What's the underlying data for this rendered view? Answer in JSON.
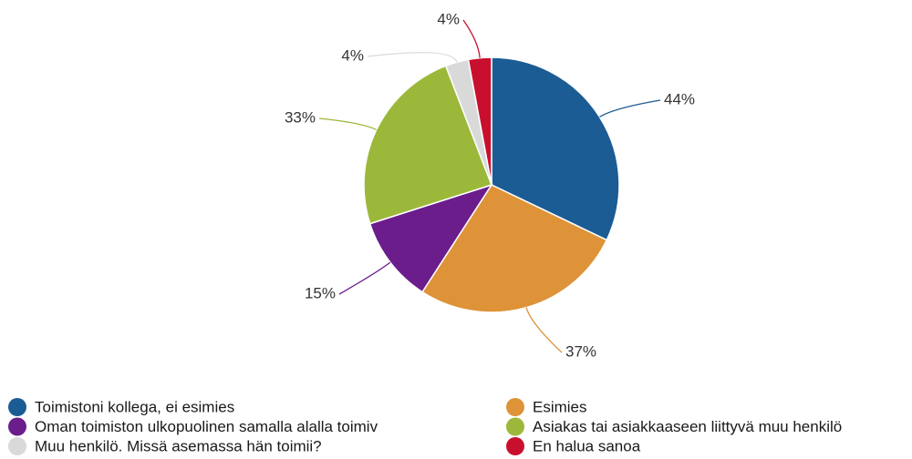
{
  "chart_data": {
    "type": "pie",
    "categories": [
      "Toimistoni kollega, ei esimies",
      "Esimies",
      "Oman toimiston ulkopuolinen samalla alalla toimiv",
      "Asiakas tai asiakkaaseen liittyvä muu henkilö",
      "Muu henkilö. Missä asemassa hän toimii?",
      "En halua sanoa"
    ],
    "values": [
      44,
      37,
      15,
      33,
      4,
      4
    ],
    "value_labels": [
      "44%",
      "37%",
      "15%",
      "33%",
      "4%",
      "4%"
    ],
    "colors": [
      "#1b5c94",
      "#de9339",
      "#6b1d8c",
      "#9cb83b",
      "#d9d9d9",
      "#c8102e"
    ]
  }
}
